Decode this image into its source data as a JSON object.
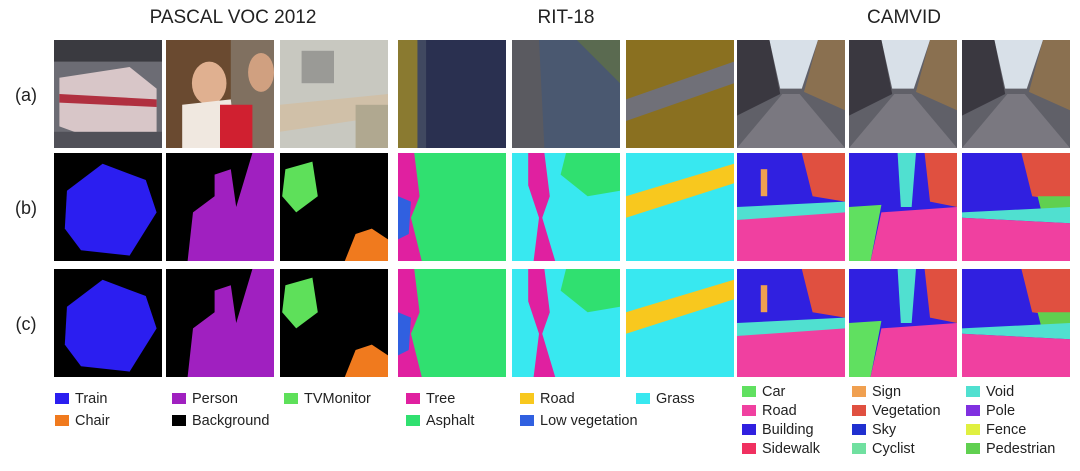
{
  "groups": [
    {
      "title": "PASCAL VOC 2012",
      "legend": [
        {
          "label": "Train",
          "color": "#2b1ef0"
        },
        {
          "label": "Chair",
          "color": "#f07a1e"
        },
        {
          "label": "Person",
          "color": "#a020c0"
        },
        {
          "label": "Background",
          "color": "#000000"
        },
        {
          "label": "TVMonitor",
          "color": "#5ee05a"
        }
      ]
    },
    {
      "title": "RIT-18",
      "legend": [
        {
          "label": "Tree",
          "color": "#e020a0"
        },
        {
          "label": "Asphalt",
          "color": "#30e070"
        },
        {
          "label": "Road",
          "color": "#f8c81e"
        },
        {
          "label": "Low vegetation",
          "color": "#3060e0"
        },
        {
          "label": "Grass",
          "color": "#38e8f0"
        }
      ]
    },
    {
      "title": "CAMVID",
      "legend": [
        {
          "label": "Car",
          "color": "#60e060"
        },
        {
          "label": "Road",
          "color": "#f040a0"
        },
        {
          "label": "Building",
          "color": "#3020e0"
        },
        {
          "label": "Sidewalk",
          "color": "#f03060"
        },
        {
          "label": "Sign",
          "color": "#f0a050"
        },
        {
          "label": "Vegetation",
          "color": "#e05040"
        },
        {
          "label": "Sky",
          "color": "#2030d0"
        },
        {
          "label": "Cyclist",
          "color": "#70e0a0"
        },
        {
          "label": "Void",
          "color": "#50e0d0"
        },
        {
          "label": "Pole",
          "color": "#8030e0"
        },
        {
          "label": "Fence",
          "color": "#e0f040"
        },
        {
          "label": "Pedestrian",
          "color": "#60d050"
        }
      ]
    }
  ],
  "rows": [
    "(a)",
    "(b)",
    "(c)"
  ]
}
